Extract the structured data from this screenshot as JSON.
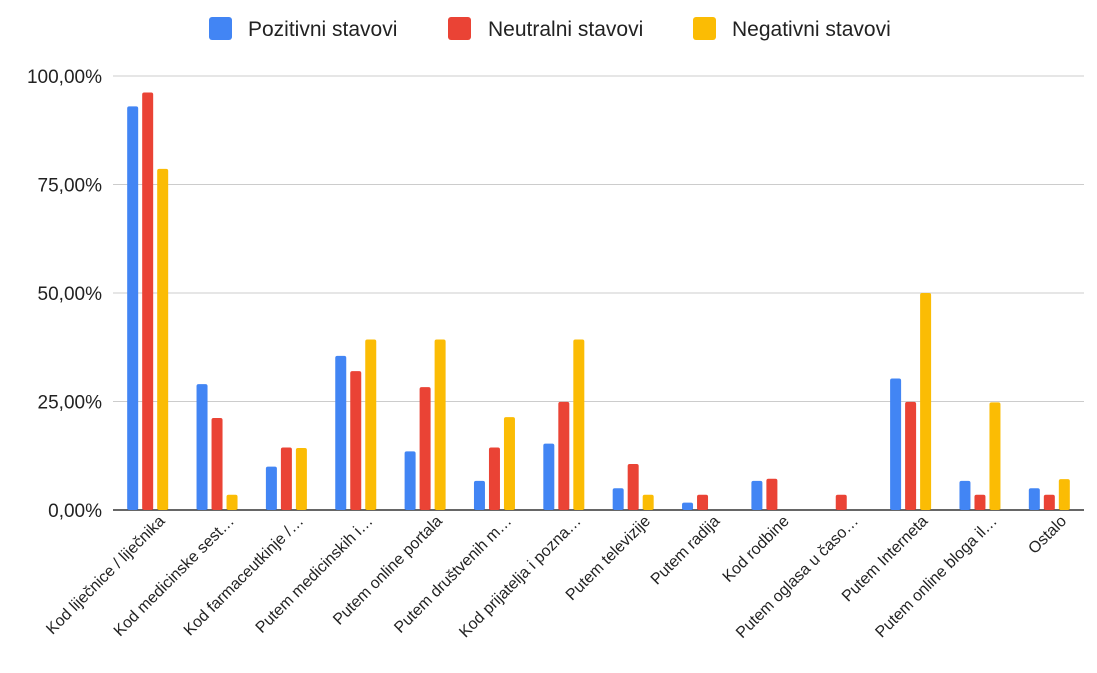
{
  "chart_data": {
    "type": "bar",
    "categories": [
      "Kod liječnice / liječnika",
      "Kod medicinske sest…",
      "Kod farmaceutkinje /…",
      "Putem medicinskih i…",
      "Putem online portala",
      "Putem društvenih m…",
      "Kod prijatelja i pozna…",
      "Putem televizije",
      "Putem radija",
      "Kod rodbine",
      "Putem oglasa u časo…",
      "Putem Interneta",
      "Putem online bloga il…",
      "Ostalo"
    ],
    "series": [
      {
        "name": "Pozitivni stavovi",
        "color": "#4285F4",
        "values": [
          93.0,
          29.0,
          10.0,
          35.5,
          13.5,
          6.7,
          15.3,
          5.0,
          1.7,
          6.7,
          0.0,
          30.3,
          6.7,
          5.0
        ]
      },
      {
        "name": "Neutralni stavovi",
        "color": "#EA4335",
        "values": [
          96.2,
          21.2,
          14.4,
          32.0,
          28.3,
          14.4,
          24.9,
          10.6,
          3.5,
          7.2,
          3.5,
          24.9,
          3.5,
          3.5
        ]
      },
      {
        "name": "Negativni stavovi",
        "color": "#FBBC04",
        "values": [
          78.6,
          3.5,
          14.3,
          39.3,
          39.3,
          21.4,
          39.3,
          3.5,
          0.0,
          0.0,
          0.0,
          50.0,
          24.8,
          7.1
        ]
      }
    ],
    "y_ticks": [
      "0,00%",
      "25,00%",
      "50,00%",
      "75,00%",
      "100,00%"
    ],
    "ylim": [
      0,
      100
    ],
    "grid": true,
    "legend_position": "top-center",
    "title": "",
    "xlabel": "",
    "ylabel": ""
  }
}
